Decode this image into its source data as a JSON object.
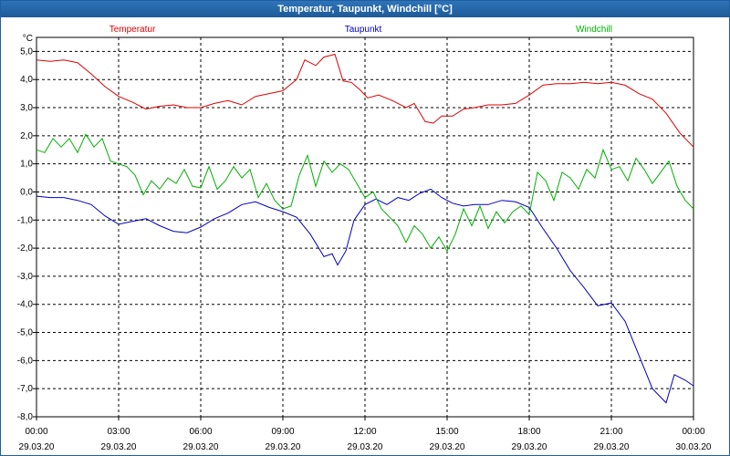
{
  "window": {
    "title": "Temperatur, Taupunkt, Windchill [°C]"
  },
  "chart_data": {
    "type": "line",
    "title": "Temperatur, Taupunkt, Windchill [°C]",
    "ylabel": "°C",
    "ylim": [
      -8,
      5.5
    ],
    "xlim": [
      0,
      24
    ],
    "grid": true,
    "yticks": [
      "5,0",
      "4,0",
      "3,0",
      "2,0",
      "1,0",
      "0,0",
      "-1,0",
      "-2,0",
      "-3,0",
      "-4,0",
      "-5,0",
      "-6,0",
      "-7,0",
      "-8,0"
    ],
    "xticks": [
      {
        "time": "00:00",
        "date": "29.03.20"
      },
      {
        "time": "03:00",
        "date": "29.03.20"
      },
      {
        "time": "06:00",
        "date": "29.03.20"
      },
      {
        "time": "09:00",
        "date": "29.03.20"
      },
      {
        "time": "12:00",
        "date": "29.03.20"
      },
      {
        "time": "15:00",
        "date": "29.03.20"
      },
      {
        "time": "18:00",
        "date": "29.03.20"
      },
      {
        "time": "21:00",
        "date": "29.03.20"
      },
      {
        "time": "00:00",
        "date": "30.03.20"
      }
    ],
    "series": [
      {
        "name": "Temperatur",
        "color": "#e00000",
        "points": [
          [
            0,
            4.7
          ],
          [
            0.5,
            4.65
          ],
          [
            1,
            4.7
          ],
          [
            1.5,
            4.6
          ],
          [
            2,
            4.2
          ],
          [
            2.5,
            3.75
          ],
          [
            3,
            3.4
          ],
          [
            3.5,
            3.2
          ],
          [
            4,
            2.95
          ],
          [
            4.5,
            3.05
          ],
          [
            5,
            3.1
          ],
          [
            5.5,
            3.0
          ],
          [
            6,
            3.0
          ],
          [
            6.5,
            3.15
          ],
          [
            7,
            3.25
          ],
          [
            7.5,
            3.1
          ],
          [
            8,
            3.4
          ],
          [
            8.5,
            3.5
          ],
          [
            9,
            3.6
          ],
          [
            9.5,
            4.0
          ],
          [
            9.8,
            4.7
          ],
          [
            10.2,
            4.5
          ],
          [
            10.5,
            4.8
          ],
          [
            10.9,
            4.9
          ],
          [
            11.2,
            3.95
          ],
          [
            11.5,
            3.9
          ],
          [
            11.8,
            3.65
          ],
          [
            12.1,
            3.35
          ],
          [
            12.5,
            3.45
          ],
          [
            13,
            3.25
          ],
          [
            13.5,
            3.0
          ],
          [
            13.8,
            3.15
          ],
          [
            14.2,
            2.5
          ],
          [
            14.5,
            2.45
          ],
          [
            14.8,
            2.7
          ],
          [
            15.2,
            2.7
          ],
          [
            15.6,
            2.95
          ],
          [
            16,
            3.0
          ],
          [
            16.5,
            3.1
          ],
          [
            17,
            3.1
          ],
          [
            17.5,
            3.15
          ],
          [
            18,
            3.45
          ],
          [
            18.5,
            3.8
          ],
          [
            19,
            3.85
          ],
          [
            19.5,
            3.85
          ],
          [
            20,
            3.9
          ],
          [
            20.5,
            3.85
          ],
          [
            21,
            3.9
          ],
          [
            21.5,
            3.8
          ],
          [
            22,
            3.5
          ],
          [
            22.5,
            3.3
          ],
          [
            23,
            2.8
          ],
          [
            23.5,
            2.1
          ],
          [
            24,
            1.6
          ]
        ]
      },
      {
        "name": "Taupunkt",
        "color": "#0000c0",
        "points": [
          [
            0,
            -0.15
          ],
          [
            0.5,
            -0.2
          ],
          [
            1,
            -0.2
          ],
          [
            1.5,
            -0.3
          ],
          [
            2,
            -0.45
          ],
          [
            2.5,
            -0.85
          ],
          [
            3,
            -1.15
          ],
          [
            3.5,
            -1.05
          ],
          [
            4,
            -0.95
          ],
          [
            4.5,
            -1.2
          ],
          [
            5,
            -1.4
          ],
          [
            5.5,
            -1.45
          ],
          [
            6,
            -1.25
          ],
          [
            6.5,
            -0.95
          ],
          [
            7,
            -0.75
          ],
          [
            7.5,
            -0.45
          ],
          [
            8,
            -0.35
          ],
          [
            8.5,
            -0.55
          ],
          [
            9,
            -0.7
          ],
          [
            9.5,
            -0.9
          ],
          [
            10,
            -1.5
          ],
          [
            10.5,
            -2.3
          ],
          [
            10.8,
            -2.2
          ],
          [
            11,
            -2.6
          ],
          [
            11.3,
            -2.1
          ],
          [
            11.6,
            -1.0
          ],
          [
            12,
            -0.45
          ],
          [
            12.4,
            -0.25
          ],
          [
            12.8,
            -0.45
          ],
          [
            13.2,
            -0.2
          ],
          [
            13.6,
            -0.3
          ],
          [
            14,
            -0.05
          ],
          [
            14.4,
            0.1
          ],
          [
            14.8,
            -0.2
          ],
          [
            15.2,
            -0.4
          ],
          [
            15.6,
            -0.5
          ],
          [
            16,
            -0.45
          ],
          [
            16.5,
            -0.45
          ],
          [
            17,
            -0.3
          ],
          [
            17.5,
            -0.35
          ],
          [
            18,
            -0.55
          ],
          [
            18.5,
            -1.3
          ],
          [
            19,
            -2.0
          ],
          [
            19.5,
            -2.8
          ],
          [
            20,
            -3.4
          ],
          [
            20.5,
            -4.05
          ],
          [
            21,
            -3.95
          ],
          [
            21.5,
            -4.6
          ],
          [
            22,
            -5.8
          ],
          [
            22.5,
            -7.0
          ],
          [
            23,
            -7.5
          ],
          [
            23.3,
            -6.5
          ],
          [
            23.7,
            -6.7
          ],
          [
            24,
            -6.9
          ]
        ]
      },
      {
        "name": "Windchill",
        "color": "#00b000",
        "points": [
          [
            0,
            1.5
          ],
          [
            0.3,
            1.4
          ],
          [
            0.6,
            1.9
          ],
          [
            0.9,
            1.6
          ],
          [
            1.2,
            1.9
          ],
          [
            1.5,
            1.4
          ],
          [
            1.8,
            2.05
          ],
          [
            2.1,
            1.6
          ],
          [
            2.4,
            1.9
          ],
          [
            2.7,
            1.1
          ],
          [
            3.0,
            1.0
          ],
          [
            3.3,
            0.9
          ],
          [
            3.6,
            0.6
          ],
          [
            3.9,
            -0.1
          ],
          [
            4.2,
            0.4
          ],
          [
            4.5,
            0.1
          ],
          [
            4.8,
            0.5
          ],
          [
            5.1,
            0.3
          ],
          [
            5.4,
            0.8
          ],
          [
            5.7,
            0.2
          ],
          [
            6.0,
            0.15
          ],
          [
            6.3,
            0.9
          ],
          [
            6.6,
            0.1
          ],
          [
            6.9,
            0.4
          ],
          [
            7.2,
            0.9
          ],
          [
            7.5,
            0.5
          ],
          [
            7.8,
            0.8
          ],
          [
            8.1,
            -0.2
          ],
          [
            8.4,
            0.3
          ],
          [
            8.7,
            -0.3
          ],
          [
            9.0,
            -0.6
          ],
          [
            9.3,
            -0.5
          ],
          [
            9.6,
            0.6
          ],
          [
            9.9,
            1.3
          ],
          [
            10.2,
            0.2
          ],
          [
            10.5,
            1.1
          ],
          [
            10.8,
            0.7
          ],
          [
            11.1,
            1.0
          ],
          [
            11.4,
            0.8
          ],
          [
            11.7,
            0.3
          ],
          [
            12.0,
            -0.2
          ],
          [
            12.3,
            0.0
          ],
          [
            12.6,
            -0.6
          ],
          [
            12.9,
            -0.9
          ],
          [
            13.2,
            -1.2
          ],
          [
            13.5,
            -1.8
          ],
          [
            13.8,
            -1.2
          ],
          [
            14.1,
            -1.5
          ],
          [
            14.4,
            -2.0
          ],
          [
            14.7,
            -1.6
          ],
          [
            15.0,
            -2.1
          ],
          [
            15.3,
            -1.5
          ],
          [
            15.6,
            -0.6
          ],
          [
            15.9,
            -1.2
          ],
          [
            16.2,
            -0.5
          ],
          [
            16.5,
            -1.3
          ],
          [
            16.8,
            -0.7
          ],
          [
            17.1,
            -1.1
          ],
          [
            17.4,
            -0.7
          ],
          [
            17.7,
            -0.5
          ],
          [
            18.0,
            -0.8
          ],
          [
            18.3,
            0.7
          ],
          [
            18.6,
            0.4
          ],
          [
            18.9,
            -0.3
          ],
          [
            19.2,
            0.7
          ],
          [
            19.5,
            0.5
          ],
          [
            19.8,
            0.1
          ],
          [
            20.1,
            0.8
          ],
          [
            20.4,
            0.5
          ],
          [
            20.7,
            1.5
          ],
          [
            21.0,
            0.8
          ],
          [
            21.3,
            0.9
          ],
          [
            21.6,
            0.4
          ],
          [
            21.9,
            1.2
          ],
          [
            22.2,
            0.8
          ],
          [
            22.5,
            0.3
          ],
          [
            22.8,
            0.7
          ],
          [
            23.1,
            1.1
          ],
          [
            23.4,
            0.2
          ],
          [
            23.7,
            -0.3
          ],
          [
            24.0,
            -0.6
          ]
        ]
      }
    ]
  }
}
